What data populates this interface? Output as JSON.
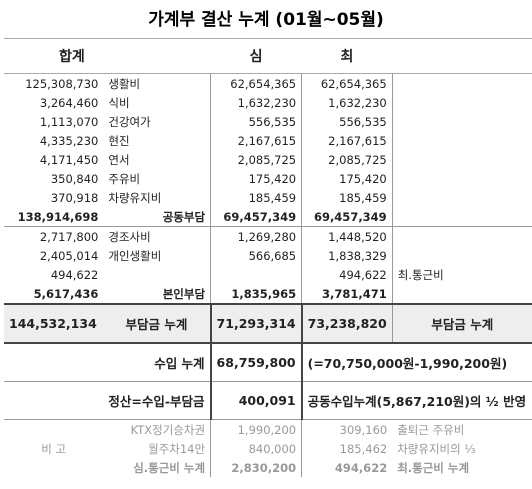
{
  "title": "가계부 결산 누계 (01월~05월)",
  "header": {
    "total": "합계",
    "sim": "심",
    "choi": "최"
  },
  "rows": [
    {
      "total": "125,308,730",
      "item": "생활비",
      "sim": "62,654,365",
      "choi": "62,654,365"
    },
    {
      "total": "3,264,460",
      "item": "식비",
      "sim": "1,632,230",
      "choi": "1,632,230"
    },
    {
      "total": "1,113,070",
      "item": "건강여가",
      "sim": "556,535",
      "choi": "556,535"
    },
    {
      "total": "4,335,230",
      "item": "현진",
      "sim": "2,167,615",
      "choi": "2,167,615"
    },
    {
      "total": "4,171,450",
      "item": "연서",
      "sim": "2,085,725",
      "choi": "2,085,725"
    },
    {
      "total": "350,840",
      "item": "주유비",
      "sim": "175,420",
      "choi": "175,420"
    },
    {
      "total": "370,918",
      "item": "차량유지비",
      "sim": "185,459",
      "choi": "185,459"
    },
    {
      "total": "138,914,698",
      "item": "공동부담",
      "sim": "69,457,349",
      "choi": "69,457,349"
    },
    {
      "total": "2,717,800",
      "item": "경조사비",
      "sim": "1,269,280",
      "choi": "1,448,520"
    },
    {
      "total": "2,405,014",
      "item": "개인생활비",
      "sim": "566,685",
      "choi": "1,838,329"
    },
    {
      "total": "494,622",
      "choi": "494,622",
      "note": "최.통근비"
    },
    {
      "total": "5,617,436",
      "item": "본인부담",
      "sim": "1,835,965",
      "choi": "3,781,471"
    },
    {
      "total": "144,532,134",
      "item": "부담금 누계",
      "sim": "71,293,314",
      "choi": "73,238,820",
      "note": "부담금 누계"
    },
    {
      "item": "수입 누계",
      "sim": "68,759,800",
      "note": "(=70,750,000원-1,990,200원)"
    },
    {
      "item": "정산=수입-부담금",
      "sim": "400,091",
      "note": "공동수입누계(5,867,210원)의 ½ 반영"
    }
  ],
  "remarks": {
    "label": "비 고",
    "rows": [
      {
        "item": "KTX정기승차권",
        "sim": "1,990,200",
        "choi": "309,160",
        "note": "출퇴근 주유비"
      },
      {
        "item": "월주차14만",
        "sim": "840,000",
        "choi": "185,462",
        "note": "차량유지비의 ⅓"
      },
      {
        "item": "심.통근비 누계",
        "sim": "2,830,200",
        "choi": "494,622",
        "note": "최.통근비 누계"
      }
    ]
  }
}
